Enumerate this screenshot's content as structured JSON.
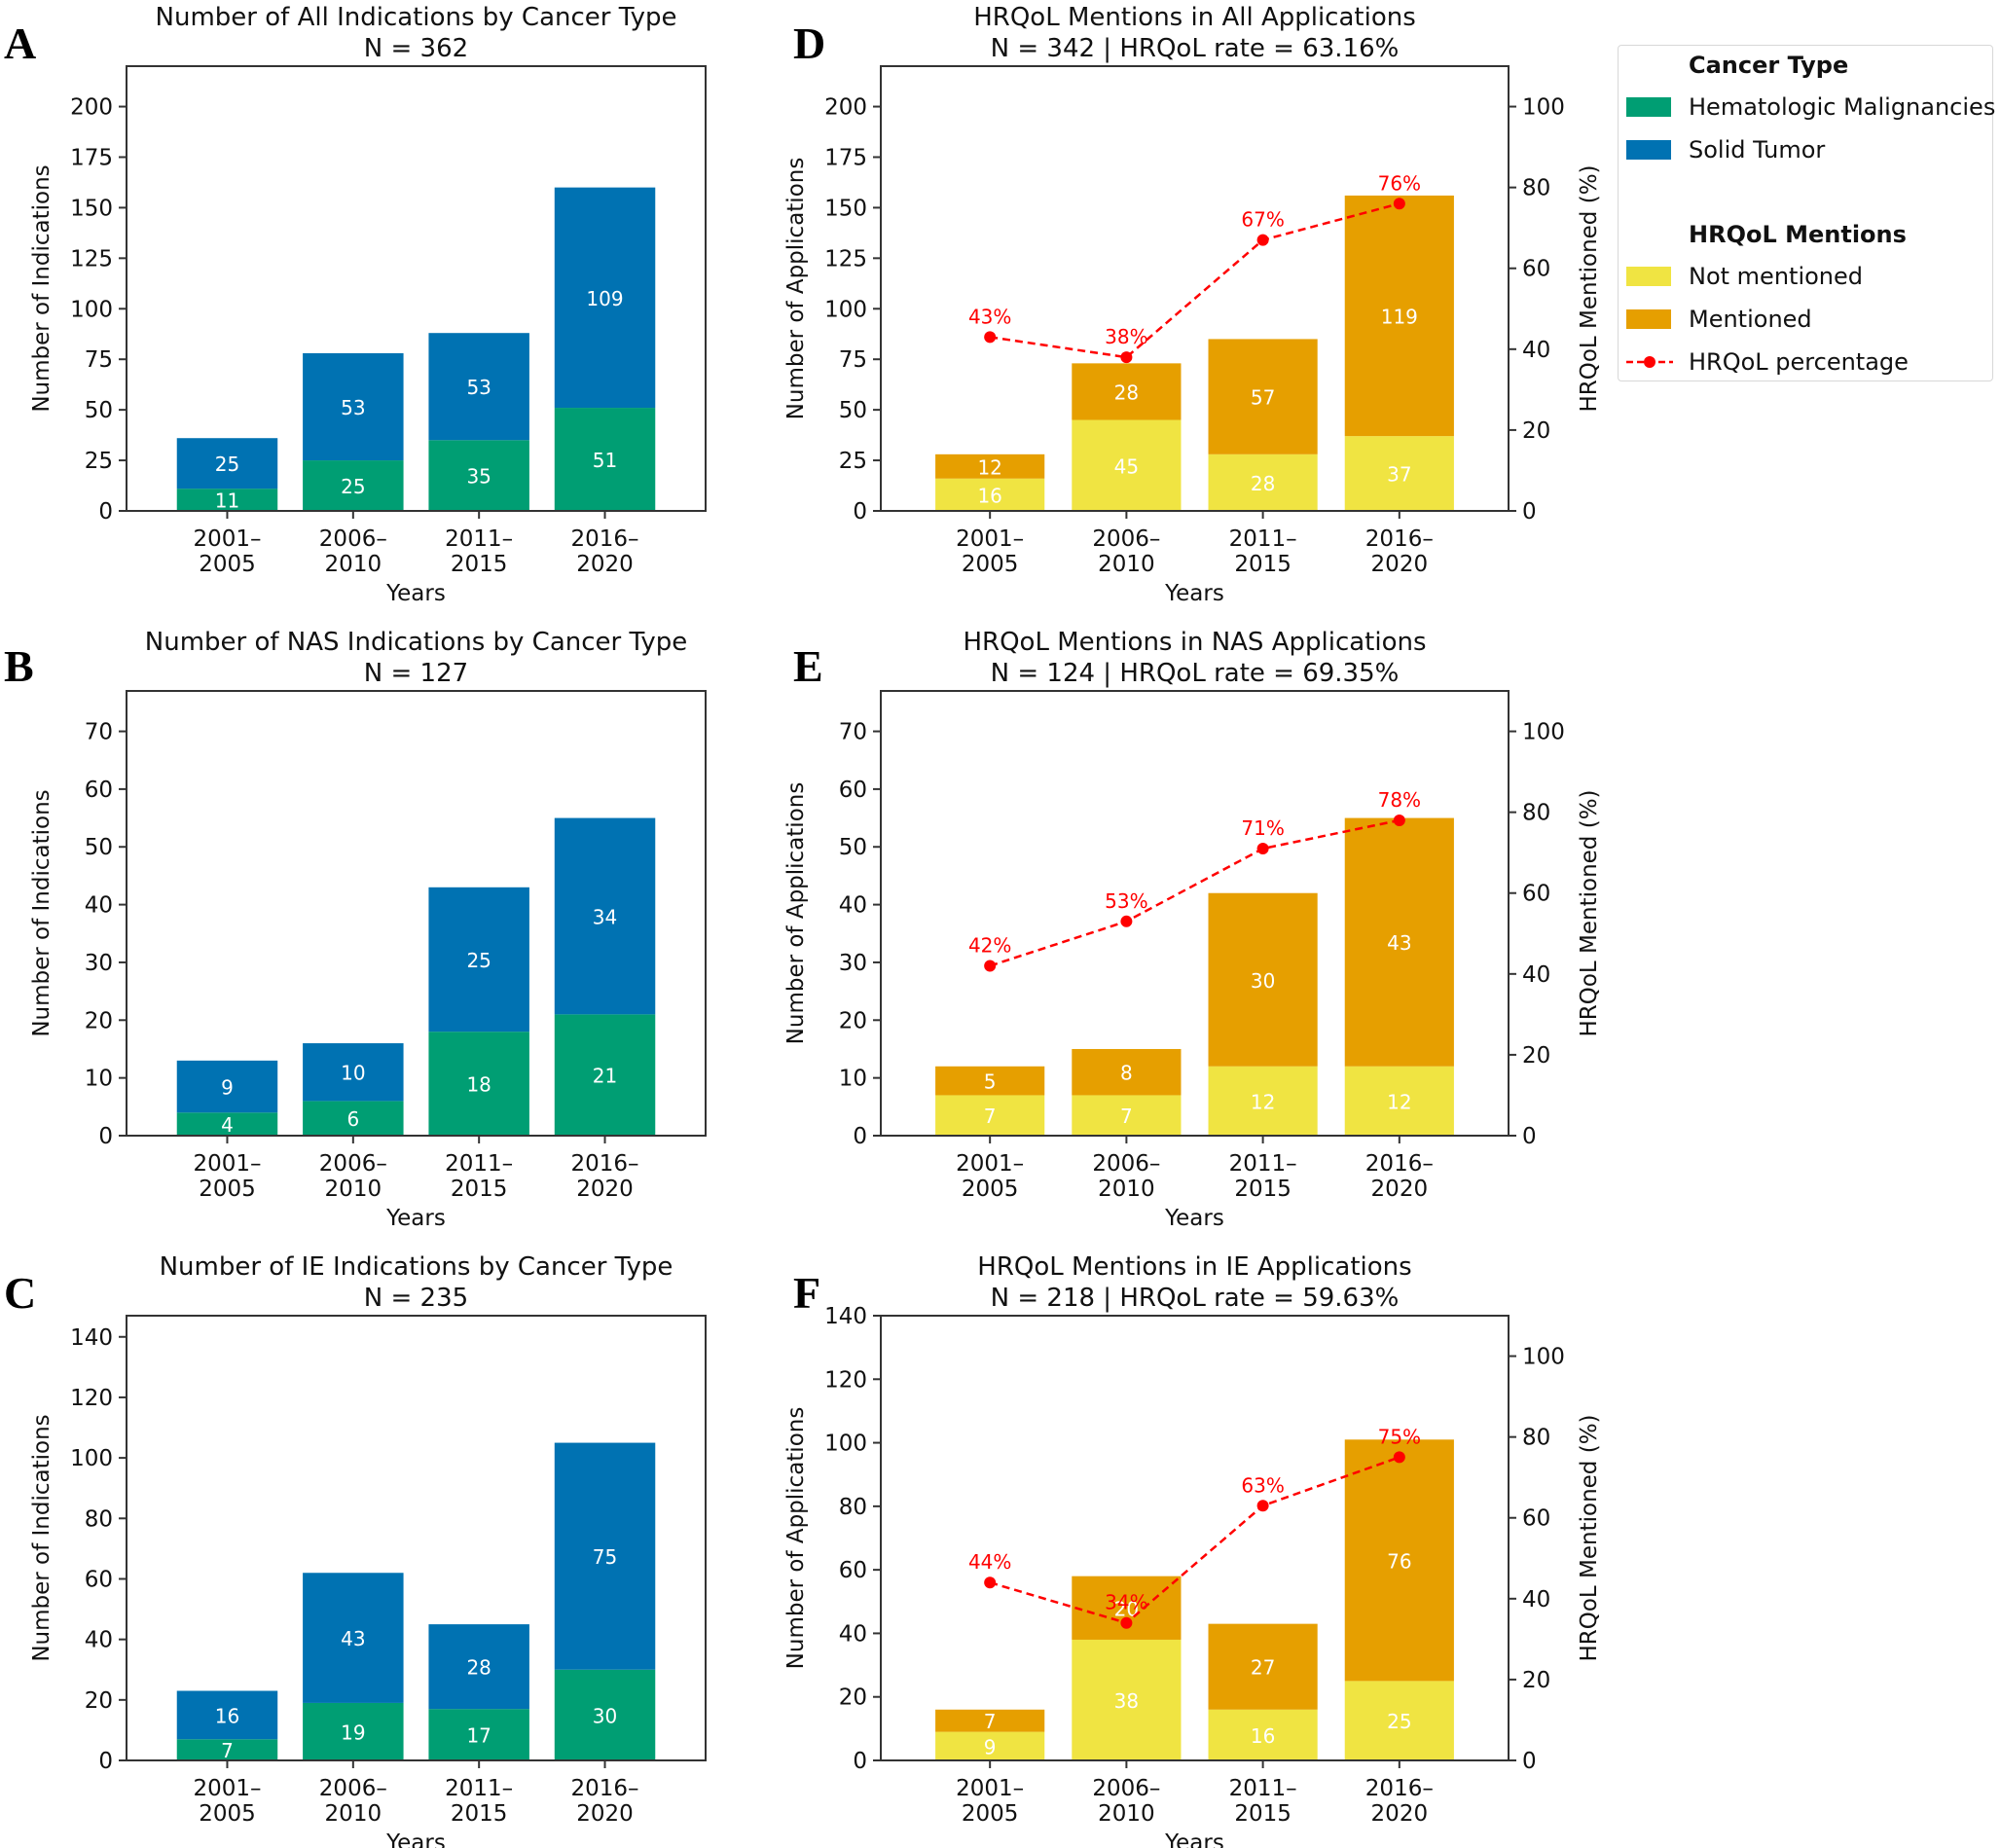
{
  "chart_data": [
    {
      "panel": "A",
      "type": "bar",
      "stacked": true,
      "title": "Number of All Indications by Cancer Type",
      "subtitle": "N = 362",
      "xlabel": "Years",
      "ylabel": "Number of Indications",
      "categories": [
        "2001–\n2005",
        "2006–\n2010",
        "2011–\n2015",
        "2016–\n2020"
      ],
      "ylim": [
        0,
        220
      ],
      "yticks": [
        0,
        25,
        50,
        75,
        100,
        125,
        150,
        175,
        200
      ],
      "series": [
        {
          "name": "Hematologic Malignancies",
          "color": "#009E73",
          "values": [
            11,
            25,
            35,
            51
          ]
        },
        {
          "name": "Solid Tumor",
          "color": "#0072B2",
          "values": [
            25,
            53,
            53,
            109
          ]
        }
      ]
    },
    {
      "panel": "B",
      "type": "bar",
      "stacked": true,
      "title": "Number of NAS Indications by Cancer Type",
      "subtitle": "N = 127",
      "xlabel": "Years",
      "ylabel": "Number of Indications",
      "categories": [
        "2001–\n2005",
        "2006–\n2010",
        "2011–\n2015",
        "2016–\n2020"
      ],
      "ylim": [
        0,
        77
      ],
      "yticks": [
        0,
        10,
        20,
        30,
        40,
        50,
        60,
        70
      ],
      "series": [
        {
          "name": "Hematologic Malignancies",
          "color": "#009E73",
          "values": [
            4,
            6,
            18,
            21
          ]
        },
        {
          "name": "Solid Tumor",
          "color": "#0072B2",
          "values": [
            9,
            10,
            25,
            34
          ]
        }
      ]
    },
    {
      "panel": "C",
      "type": "bar",
      "stacked": true,
      "title": "Number of IE Indications by Cancer Type",
      "subtitle": "N = 235",
      "xlabel": "Years",
      "ylabel": "Number of Indications",
      "categories": [
        "2001–\n2005",
        "2006–\n2010",
        "2011–\n2015",
        "2016–\n2020"
      ],
      "ylim": [
        0,
        147
      ],
      "yticks": [
        0,
        20,
        40,
        60,
        80,
        100,
        120,
        140
      ],
      "series": [
        {
          "name": "Hematologic Malignancies",
          "color": "#009E73",
          "values": [
            7,
            19,
            17,
            30
          ]
        },
        {
          "name": "Solid Tumor",
          "color": "#0072B2",
          "values": [
            16,
            43,
            28,
            75
          ]
        }
      ]
    },
    {
      "panel": "D",
      "type": "bar",
      "stacked": true,
      "title": "HRQoL Mentions in All Applications",
      "subtitle": "N = 342 | HRQoL rate = 63.16%",
      "xlabel": "Years",
      "ylabel": "Number of Applications",
      "y2label": "HRQoL Mentioned (%)",
      "categories": [
        "2001–\n2005",
        "2006–\n2010",
        "2011–\n2015",
        "2016–\n2020"
      ],
      "ylim": [
        0,
        220
      ],
      "yticks": [
        0,
        25,
        50,
        75,
        100,
        125,
        150,
        175,
        200
      ],
      "y2lim": [
        0,
        110
      ],
      "y2ticks": [
        0,
        20,
        40,
        60,
        80,
        100
      ],
      "series": [
        {
          "name": "Not mentioned",
          "color": "#F0E442",
          "values": [
            16,
            45,
            28,
            37
          ]
        },
        {
          "name": "Mentioned",
          "color": "#E69F00",
          "values": [
            12,
            28,
            57,
            119
          ]
        }
      ],
      "line": {
        "name": "HRQoL percentage",
        "color": "#FF0000",
        "values": [
          43,
          38,
          67,
          76
        ],
        "labels": [
          "43%",
          "38%",
          "67%",
          "76%"
        ]
      }
    },
    {
      "panel": "E",
      "type": "bar",
      "stacked": true,
      "title": "HRQoL Mentions in NAS Applications",
      "subtitle": "N = 124 | HRQoL rate = 69.35%",
      "xlabel": "Years",
      "ylabel": "Number of Applications",
      "y2label": "HRQoL Mentioned (%)",
      "categories": [
        "2001–\n2005",
        "2006–\n2010",
        "2011–\n2015",
        "2016–\n2020"
      ],
      "ylim": [
        0,
        77
      ],
      "yticks": [
        0,
        10,
        20,
        30,
        40,
        50,
        60,
        70
      ],
      "y2lim": [
        0,
        110
      ],
      "y2ticks": [
        0,
        20,
        40,
        60,
        80,
        100
      ],
      "series": [
        {
          "name": "Not mentioned",
          "color": "#F0E442",
          "values": [
            7,
            7,
            12,
            12
          ]
        },
        {
          "name": "Mentioned",
          "color": "#E69F00",
          "values": [
            5,
            8,
            30,
            43
          ]
        }
      ],
      "line": {
        "name": "HRQoL percentage",
        "color": "#FF0000",
        "values": [
          42,
          53,
          71,
          78
        ],
        "labels": [
          "42%",
          "53%",
          "71%",
          "78%"
        ]
      }
    },
    {
      "panel": "F",
      "type": "bar",
      "stacked": true,
      "title": "HRQoL Mentions in IE Applications",
      "subtitle": "N = 218 | HRQoL rate = 59.63%",
      "xlabel": "Years",
      "ylabel": "Number of Applications",
      "y2label": "HRQoL Mentioned (%)",
      "categories": [
        "2001–\n2005",
        "2006–\n2010",
        "2011–\n2015",
        "2016–\n2020"
      ],
      "ylim": [
        0,
        140
      ],
      "yticks": [
        0,
        20,
        40,
        60,
        80,
        100,
        120,
        140
      ],
      "y2lim": [
        0,
        110
      ],
      "y2ticks": [
        0,
        20,
        40,
        60,
        80,
        100
      ],
      "series": [
        {
          "name": "Not mentioned",
          "color": "#F0E442",
          "values": [
            9,
            38,
            16,
            25
          ]
        },
        {
          "name": "Mentioned",
          "color": "#E69F00",
          "values": [
            7,
            20,
            27,
            76
          ]
        }
      ],
      "line": {
        "name": "HRQoL percentage",
        "color": "#FF0000",
        "values": [
          44,
          34,
          63,
          75
        ],
        "labels": [
          "44%",
          "34%",
          "63%",
          "75%"
        ]
      }
    }
  ],
  "legend": {
    "group1_title": "Cancer Type",
    "group1_items": [
      {
        "label": "Hematologic Malignancies",
        "color": "#009E73"
      },
      {
        "label": "Solid Tumor",
        "color": "#0072B2"
      }
    ],
    "group2_title": "HRQoL Mentions",
    "group2_items": [
      {
        "label": "Not mentioned",
        "color": "#F0E442"
      },
      {
        "label": "Mentioned",
        "color": "#E69F00"
      },
      {
        "label": "HRQoL percentage",
        "color": "#FF0000"
      }
    ]
  }
}
